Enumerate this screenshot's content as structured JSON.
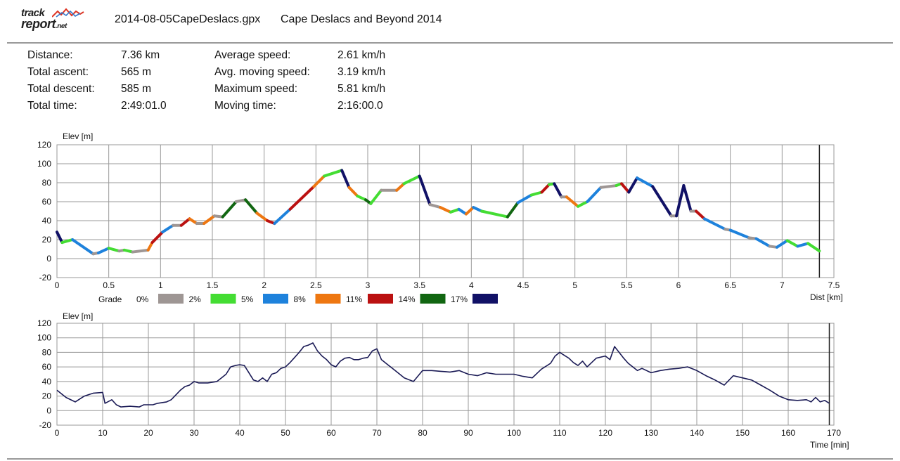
{
  "header": {
    "logo_top": "track",
    "logo_bottom": "report",
    "logo_suffix": ".net",
    "filename": "2014-08-05CapeDeslacs.gpx",
    "track_name": "Cape Deslacs and Beyond 2014"
  },
  "stats": [
    {
      "label": "Distance:",
      "value": "7.36 km"
    },
    {
      "label": "Total ascent:",
      "value": "565 m"
    },
    {
      "label": "Total descent:",
      "value": "585 m"
    },
    {
      "label": "Total time:",
      "value": "2:49:01.0"
    },
    {
      "label": "Average speed:",
      "value": "2.61 km/h"
    },
    {
      "label": "Avg. moving speed:",
      "value": "3.19 km/h"
    },
    {
      "label": "Maximum speed:",
      "value": "5.81 km/h"
    },
    {
      "label": "Moving time:",
      "value": "2:16:00.0"
    }
  ],
  "colors": {
    "grade_0": "#9e9694",
    "grade_2": "#44dd33",
    "grade_5": "#1e82dc",
    "grade_8": "#ee7711",
    "grade_11": "#bb1111",
    "grade_14": "#116611",
    "grade_17": "#111166",
    "time_line": "#1a1a55",
    "grid": "#999999",
    "rule": "#999999"
  },
  "chart_data": [
    {
      "type": "line",
      "title": "",
      "xlabel": "Dist [km]",
      "ylabel": "Elev [m]",
      "xlim": [
        0,
        7.5
      ],
      "ylim": [
        -20,
        120
      ],
      "xticks": [
        "0",
        "0.5",
        "1",
        "1.5",
        "2",
        "2.5",
        "3",
        "3.5",
        "4",
        "4.5",
        "5",
        "5.5",
        "6",
        "6.5",
        "7",
        "7.5"
      ],
      "yticks": [
        "120",
        "100",
        "80",
        "60",
        "40",
        "20",
        "0",
        "-20"
      ],
      "grid": true,
      "marker_x": 7.36,
      "legend": {
        "title": "Grade",
        "items": [
          {
            "label": "0%",
            "color": "#9e9694"
          },
          {
            "label": "2%",
            "color": "#44dd33"
          },
          {
            "label": "5%",
            "color": "#1e82dc"
          },
          {
            "label": "8%",
            "color": "#ee7711"
          },
          {
            "label": "11%",
            "color": "#bb1111"
          },
          {
            "label": "14%",
            "color": "#116611"
          },
          {
            "label": "17%",
            "color": "#111166"
          }
        ]
      },
      "segments": [
        {
          "grade": "17%",
          "x": [
            0.0,
            0.05
          ],
          "y": [
            28,
            17
          ]
        },
        {
          "grade": "2%",
          "x": [
            0.05,
            0.15
          ],
          "y": [
            17,
            20
          ]
        },
        {
          "grade": "5%",
          "x": [
            0.15,
            0.35
          ],
          "y": [
            20,
            5
          ]
        },
        {
          "grade": "0%",
          "x": [
            0.35,
            0.4
          ],
          "y": [
            5,
            6
          ]
        },
        {
          "grade": "5%",
          "x": [
            0.4,
            0.5
          ],
          "y": [
            6,
            11
          ]
        },
        {
          "grade": "2%",
          "x": [
            0.5,
            0.6
          ],
          "y": [
            11,
            8
          ]
        },
        {
          "grade": "0%",
          "x": [
            0.6,
            0.65
          ],
          "y": [
            8,
            9
          ]
        },
        {
          "grade": "2%",
          "x": [
            0.65,
            0.73
          ],
          "y": [
            9,
            7
          ]
        },
        {
          "grade": "0%",
          "x": [
            0.73,
            0.88
          ],
          "y": [
            7,
            9
          ]
        },
        {
          "grade": "8%",
          "x": [
            0.88,
            0.92
          ],
          "y": [
            9,
            17
          ]
        },
        {
          "grade": "11%",
          "x": [
            0.92,
            1.02
          ],
          "y": [
            17,
            28
          ]
        },
        {
          "grade": "5%",
          "x": [
            1.02,
            1.12
          ],
          "y": [
            28,
            35
          ]
        },
        {
          "grade": "0%",
          "x": [
            1.12,
            1.2
          ],
          "y": [
            35,
            35
          ]
        },
        {
          "grade": "11%",
          "x": [
            1.2,
            1.28
          ],
          "y": [
            35,
            42
          ]
        },
        {
          "grade": "8%",
          "x": [
            1.28,
            1.35
          ],
          "y": [
            42,
            37
          ]
        },
        {
          "grade": "0%",
          "x": [
            1.35,
            1.42
          ],
          "y": [
            37,
            37
          ]
        },
        {
          "grade": "8%",
          "x": [
            1.42,
            1.52
          ],
          "y": [
            37,
            45
          ]
        },
        {
          "grade": "0%",
          "x": [
            1.52,
            1.6
          ],
          "y": [
            45,
            44
          ]
        },
        {
          "grade": "14%",
          "x": [
            1.6,
            1.73
          ],
          "y": [
            44,
            60
          ]
        },
        {
          "grade": "0%",
          "x": [
            1.73,
            1.82
          ],
          "y": [
            60,
            62
          ]
        },
        {
          "grade": "14%",
          "x": [
            1.82,
            1.93
          ],
          "y": [
            62,
            48
          ]
        },
        {
          "grade": "8%",
          "x": [
            1.93,
            2.03
          ],
          "y": [
            48,
            40
          ]
        },
        {
          "grade": "11%",
          "x": [
            2.03,
            2.1
          ],
          "y": [
            40,
            37
          ]
        },
        {
          "grade": "5%",
          "x": [
            2.1,
            2.25
          ],
          "y": [
            37,
            52
          ]
        },
        {
          "grade": "11%",
          "x": [
            2.25,
            2.48
          ],
          "y": [
            52,
            76
          ]
        },
        {
          "grade": "8%",
          "x": [
            2.48,
            2.58
          ],
          "y": [
            76,
            87
          ]
        },
        {
          "grade": "2%",
          "x": [
            2.58,
            2.75
          ],
          "y": [
            87,
            93
          ]
        },
        {
          "grade": "17%",
          "x": [
            2.75,
            2.82
          ],
          "y": [
            93,
            75
          ]
        },
        {
          "grade": "8%",
          "x": [
            2.82,
            2.9
          ],
          "y": [
            75,
            66
          ]
        },
        {
          "grade": "2%",
          "x": [
            2.9,
            2.98
          ],
          "y": [
            66,
            62
          ]
        },
        {
          "grade": "14%",
          "x": [
            2.98,
            3.03
          ],
          "y": [
            62,
            58
          ]
        },
        {
          "grade": "2%",
          "x": [
            3.03,
            3.13
          ],
          "y": [
            58,
            72
          ]
        },
        {
          "grade": "0%",
          "x": [
            3.13,
            3.28
          ],
          "y": [
            72,
            72
          ]
        },
        {
          "grade": "8%",
          "x": [
            3.28,
            3.35
          ],
          "y": [
            72,
            79
          ]
        },
        {
          "grade": "2%",
          "x": [
            3.35,
            3.5
          ],
          "y": [
            79,
            87
          ]
        },
        {
          "grade": "17%",
          "x": [
            3.5,
            3.6
          ],
          "y": [
            87,
            57
          ]
        },
        {
          "grade": "0%",
          "x": [
            3.6,
            3.7
          ],
          "y": [
            57,
            54
          ]
        },
        {
          "grade": "8%",
          "x": [
            3.7,
            3.8
          ],
          "y": [
            54,
            49
          ]
        },
        {
          "grade": "2%",
          "x": [
            3.8,
            3.88
          ],
          "y": [
            49,
            52
          ]
        },
        {
          "grade": "5%",
          "x": [
            3.88,
            3.95
          ],
          "y": [
            52,
            47
          ]
        },
        {
          "grade": "8%",
          "x": [
            3.95,
            4.02
          ],
          "y": [
            47,
            54
          ]
        },
        {
          "grade": "5%",
          "x": [
            4.02,
            4.1
          ],
          "y": [
            54,
            50
          ]
        },
        {
          "grade": "2%",
          "x": [
            4.1,
            4.35
          ],
          "y": [
            50,
            44
          ]
        },
        {
          "grade": "14%",
          "x": [
            4.35,
            4.45
          ],
          "y": [
            44,
            59
          ]
        },
        {
          "grade": "5%",
          "x": [
            4.45,
            4.58
          ],
          "y": [
            59,
            67
          ]
        },
        {
          "grade": "2%",
          "x": [
            4.58,
            4.68
          ],
          "y": [
            67,
            70
          ]
        },
        {
          "grade": "11%",
          "x": [
            4.68,
            4.75
          ],
          "y": [
            70,
            78
          ]
        },
        {
          "grade": "2%",
          "x": [
            4.75,
            4.8
          ],
          "y": [
            78,
            79
          ]
        },
        {
          "grade": "17%",
          "x": [
            4.8,
            4.87
          ],
          "y": [
            79,
            65
          ]
        },
        {
          "grade": "0%",
          "x": [
            4.87,
            4.92
          ],
          "y": [
            65,
            65
          ]
        },
        {
          "grade": "8%",
          "x": [
            4.92,
            5.03
          ],
          "y": [
            65,
            55
          ]
        },
        {
          "grade": "2%",
          "x": [
            5.03,
            5.12
          ],
          "y": [
            55,
            60
          ]
        },
        {
          "grade": "5%",
          "x": [
            5.12,
            5.25
          ],
          "y": [
            60,
            75
          ]
        },
        {
          "grade": "0%",
          "x": [
            5.25,
            5.4
          ],
          "y": [
            75,
            77
          ]
        },
        {
          "grade": "2%",
          "x": [
            5.4,
            5.45
          ],
          "y": [
            77,
            79
          ]
        },
        {
          "grade": "11%",
          "x": [
            5.45,
            5.52
          ],
          "y": [
            79,
            70
          ]
        },
        {
          "grade": "17%",
          "x": [
            5.52,
            5.6
          ],
          "y": [
            70,
            85
          ]
        },
        {
          "grade": "5%",
          "x": [
            5.6,
            5.75
          ],
          "y": [
            85,
            76
          ]
        },
        {
          "grade": "17%",
          "x": [
            5.75,
            5.93
          ],
          "y": [
            76,
            45
          ]
        },
        {
          "grade": "0%",
          "x": [
            5.93,
            5.98
          ],
          "y": [
            45,
            45
          ]
        },
        {
          "grade": "17%",
          "x": [
            5.98,
            6.05
          ],
          "y": [
            45,
            77
          ]
        },
        {
          "grade": "17%",
          "x": [
            6.05,
            6.12
          ],
          "y": [
            77,
            50
          ]
        },
        {
          "grade": "0%",
          "x": [
            6.12,
            6.17
          ],
          "y": [
            50,
            50
          ]
        },
        {
          "grade": "11%",
          "x": [
            6.17,
            6.25
          ],
          "y": [
            50,
            42
          ]
        },
        {
          "grade": "5%",
          "x": [
            6.25,
            6.45
          ],
          "y": [
            42,
            31
          ]
        },
        {
          "grade": "0%",
          "x": [
            6.45,
            6.5
          ],
          "y": [
            31,
            30
          ]
        },
        {
          "grade": "5%",
          "x": [
            6.5,
            6.68
          ],
          "y": [
            30,
            22
          ]
        },
        {
          "grade": "0%",
          "x": [
            6.68,
            6.75
          ],
          "y": [
            22,
            21
          ]
        },
        {
          "grade": "5%",
          "x": [
            6.75,
            6.88
          ],
          "y": [
            21,
            13
          ]
        },
        {
          "grade": "0%",
          "x": [
            6.88,
            6.95
          ],
          "y": [
            13,
            12
          ]
        },
        {
          "grade": "5%",
          "x": [
            6.95,
            7.05
          ],
          "y": [
            12,
            19
          ]
        },
        {
          "grade": "2%",
          "x": [
            7.05,
            7.15
          ],
          "y": [
            19,
            13
          ]
        },
        {
          "grade": "5%",
          "x": [
            7.15,
            7.25
          ],
          "y": [
            13,
            16
          ]
        },
        {
          "grade": "2%",
          "x": [
            7.25,
            7.36
          ],
          "y": [
            16,
            8
          ]
        }
      ]
    },
    {
      "type": "line",
      "title": "",
      "xlabel": "Time [min]",
      "ylabel": "Elev [m]",
      "xlim": [
        0,
        170
      ],
      "ylim": [
        -20,
        120
      ],
      "xticks": [
        "0",
        "10",
        "20",
        "30",
        "40",
        "50",
        "60",
        "70",
        "80",
        "90",
        "100",
        "110",
        "120",
        "130",
        "140",
        "150",
        "160",
        "170"
      ],
      "yticks": [
        "120",
        "100",
        "80",
        "60",
        "40",
        "20",
        "0",
        "-20"
      ],
      "grid": true,
      "marker_x": 169,
      "series": [
        {
          "x": [
            0,
            2,
            4,
            6,
            8,
            10,
            10.5,
            12,
            13,
            14,
            16,
            18,
            19,
            21,
            22,
            24,
            25,
            27,
            28,
            29,
            30,
            31,
            33,
            35,
            36,
            37,
            38,
            39,
            40,
            41,
            42,
            43,
            44,
            45,
            46,
            47,
            48,
            49,
            50,
            51,
            52,
            53,
            54,
            55,
            56,
            57,
            58,
            59,
            60,
            61,
            62,
            63,
            64,
            65,
            66,
            67,
            68,
            69,
            70,
            71,
            72,
            74,
            76,
            78,
            80,
            82,
            84,
            86,
            88,
            90,
            92,
            94,
            96,
            98,
            100,
            102,
            104,
            106,
            108,
            109,
            110,
            112,
            113,
            114,
            115,
            116,
            118,
            120,
            121,
            122,
            123,
            124,
            125,
            126,
            127,
            128,
            130,
            132,
            134,
            136,
            138,
            140,
            142,
            144,
            146,
            148,
            150,
            152,
            154,
            156,
            158,
            160,
            162,
            164,
            165,
            166,
            167,
            168,
            169
          ],
          "y": [
            28,
            18,
            12,
            20,
            24,
            25,
            10,
            15,
            8,
            5,
            6,
            5,
            8,
            8,
            10,
            12,
            15,
            28,
            33,
            35,
            40,
            38,
            38,
            40,
            45,
            50,
            60,
            62,
            63,
            62,
            52,
            42,
            40,
            45,
            40,
            50,
            52,
            58,
            60,
            66,
            73,
            80,
            88,
            90,
            93,
            82,
            75,
            70,
            63,
            60,
            68,
            72,
            73,
            70,
            70,
            72,
            73,
            82,
            85,
            70,
            65,
            55,
            45,
            40,
            55,
            55,
            54,
            53,
            55,
            50,
            48,
            52,
            50,
            50,
            50,
            47,
            45,
            57,
            65,
            75,
            80,
            72,
            66,
            62,
            68,
            60,
            72,
            75,
            70,
            88,
            80,
            72,
            65,
            60,
            55,
            58,
            52,
            55,
            57,
            58,
            60,
            55,
            48,
            42,
            35,
            48,
            45,
            42,
            35,
            28,
            20,
            15,
            14,
            15,
            12,
            18,
            12,
            14,
            10
          ]
        }
      ]
    }
  ]
}
